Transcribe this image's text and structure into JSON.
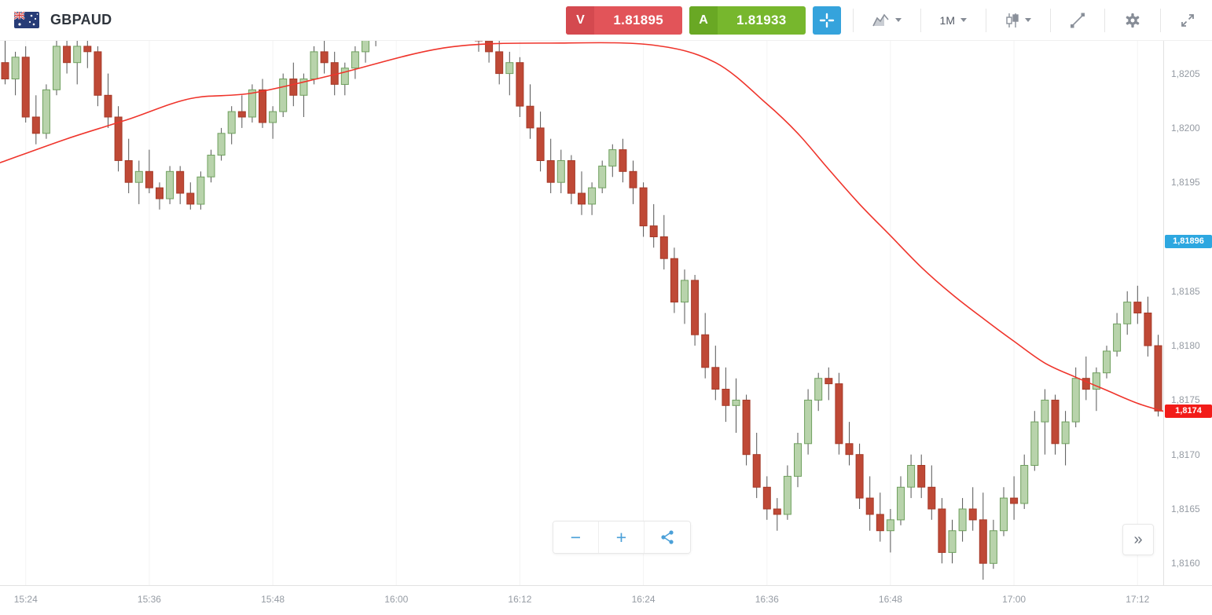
{
  "header": {
    "symbol": "GBPAUD",
    "flag_icon": "gbpaud-flag-icon",
    "sell": {
      "label": "V",
      "price": "1.81895",
      "bg": "#e25459",
      "label_bg": "#d4494f"
    },
    "buy": {
      "label": "A",
      "price": "1.81933",
      "bg": "#77b72d",
      "label_bg": "#69a824"
    },
    "crosshair": {
      "icon": "crosshair-icon",
      "bg": "#35a3dc"
    },
    "chart_type_icon": "area-chart-icon",
    "timeframe": "1M",
    "candle_style_icon": "candlestick-icon",
    "drawing_icon": "trendline-icon",
    "settings_icon": "gear-icon",
    "fullscreen_icon": "fullscreen-icon",
    "dropdown_icon": "chevron-down-icon"
  },
  "controls": {
    "zoom_out": "−",
    "zoom_in": "+",
    "share_icon": "share-icon",
    "jump_to_latest": "»"
  },
  "price_axis": {
    "labels": [
      {
        "text": "1,8205",
        "price": 1.8205
      },
      {
        "text": "1,8200",
        "price": 1.82
      },
      {
        "text": "1,8195",
        "price": 1.8195
      },
      {
        "text": "1,8185",
        "price": 1.8185
      },
      {
        "text": "1,8180",
        "price": 1.818
      },
      {
        "text": "1,8175",
        "price": 1.8175
      },
      {
        "text": "1,8170",
        "price": 1.817
      },
      {
        "text": "1,8165",
        "price": 1.8165
      },
      {
        "text": "1,8160",
        "price": 1.816
      }
    ],
    "bid_tag": {
      "text": "1,81896",
      "price": 1.81896,
      "color": "#2da7e0"
    },
    "last_tag": {
      "text": "1,8174",
      "price": 1.8174,
      "color": "#f21c19"
    }
  },
  "time_axis": {
    "labels": [
      {
        "text": "15:24",
        "index": 2
      },
      {
        "text": "15:36",
        "index": 14
      },
      {
        "text": "15:48",
        "index": 26
      },
      {
        "text": "16:00",
        "index": 38
      },
      {
        "text": "16:12",
        "index": 50
      },
      {
        "text": "16:24",
        "index": 62
      },
      {
        "text": "16:36",
        "index": 74
      },
      {
        "text": "16:48",
        "index": 86
      },
      {
        "text": "17:00",
        "index": 98
      },
      {
        "text": "17:12",
        "index": 110
      }
    ]
  },
  "chart_data": {
    "type": "candlestick",
    "symbol": "GBPAUD",
    "interval": "1M",
    "start_time": "15:22",
    "minutes_per_candle": 1,
    "ylim": [
      1.8158,
      1.8208
    ],
    "y_tick_step": 0.0005,
    "grid": "vertical-faint",
    "grid_color": "#f4f4f4",
    "up_color": "#b8d3ab",
    "up_border": "#6fa05e",
    "down_color": "#bf4936",
    "down_border": "#a53a28",
    "wick_color": "#555555",
    "ma": {
      "name": "moving-average",
      "color": "#ef342b",
      "points": [
        [
          -0.5,
          1.81968
        ],
        [
          6,
          1.8199
        ],
        [
          12,
          1.82008
        ],
        [
          18,
          1.82027
        ],
        [
          24,
          1.82032
        ],
        [
          32,
          1.82049
        ],
        [
          43,
          1.82074
        ],
        [
          54,
          1.82078
        ],
        [
          63,
          1.82076
        ],
        [
          69,
          1.8206
        ],
        [
          74,
          1.82022
        ],
        [
          77,
          1.81995
        ],
        [
          80,
          1.81962
        ],
        [
          83,
          1.8193
        ],
        [
          86,
          1.81901
        ],
        [
          89,
          1.81872
        ],
        [
          92,
          1.81847
        ],
        [
          95,
          1.81825
        ],
        [
          98,
          1.81804
        ],
        [
          101,
          1.81784
        ],
        [
          104,
          1.81771
        ],
        [
          107,
          1.81759
        ],
        [
          110,
          1.81747
        ],
        [
          112.8,
          1.81739
        ]
      ]
    },
    "ohlc": [
      [
        1.8206,
        1.8208,
        1.8204,
        1.82045
      ],
      [
        1.82045,
        1.8207,
        1.8203,
        1.82065
      ],
      [
        1.82065,
        1.82075,
        1.82005,
        1.8201
      ],
      [
        1.8201,
        1.8203,
        1.81985,
        1.81995
      ],
      [
        1.81995,
        1.8204,
        1.8199,
        1.82035
      ],
      [
        1.82035,
        1.8208,
        1.8203,
        1.82075
      ],
      [
        1.82075,
        1.82085,
        1.8205,
        1.8206
      ],
      [
        1.8206,
        1.8208,
        1.8204,
        1.82075
      ],
      [
        1.82075,
        1.82085,
        1.82055,
        1.8207
      ],
      [
        1.8207,
        1.82075,
        1.8202,
        1.8203
      ],
      [
        1.8203,
        1.8205,
        1.82,
        1.8201
      ],
      [
        1.8201,
        1.8202,
        1.8196,
        1.8197
      ],
      [
        1.8197,
        1.8199,
        1.8194,
        1.8195
      ],
      [
        1.8195,
        1.8197,
        1.8193,
        1.8196
      ],
      [
        1.8196,
        1.8198,
        1.8194,
        1.81945
      ],
      [
        1.81945,
        1.8195,
        1.81925,
        1.81935
      ],
      [
        1.81935,
        1.81965,
        1.8193,
        1.8196
      ],
      [
        1.8196,
        1.81965,
        1.8193,
        1.8194
      ],
      [
        1.8194,
        1.8195,
        1.81925,
        1.8193
      ],
      [
        1.8193,
        1.8196,
        1.81925,
        1.81955
      ],
      [
        1.81955,
        1.8198,
        1.8195,
        1.81975
      ],
      [
        1.81975,
        1.82,
        1.8197,
        1.81995
      ],
      [
        1.81995,
        1.8202,
        1.81985,
        1.82015
      ],
      [
        1.82015,
        1.8203,
        1.82,
        1.8201
      ],
      [
        1.8201,
        1.8204,
        1.82005,
        1.82035
      ],
      [
        1.82035,
        1.82045,
        1.82,
        1.82005
      ],
      [
        1.82005,
        1.8202,
        1.8199,
        1.82015
      ],
      [
        1.82015,
        1.8205,
        1.8201,
        1.82045
      ],
      [
        1.82045,
        1.8206,
        1.8202,
        1.8203
      ],
      [
        1.8203,
        1.8205,
        1.8201,
        1.82045
      ],
      [
        1.82045,
        1.82075,
        1.8204,
        1.8207
      ],
      [
        1.8207,
        1.8208,
        1.8205,
        1.8206
      ],
      [
        1.8206,
        1.8207,
        1.8203,
        1.8204
      ],
      [
        1.8204,
        1.8206,
        1.8203,
        1.82055
      ],
      [
        1.82055,
        1.82075,
        1.82045,
        1.8207
      ],
      [
        1.8207,
        1.8209,
        1.8206,
        1.82085
      ],
      [
        1.82085,
        1.821,
        1.82075,
        1.82095
      ],
      [
        1.82095,
        1.8211,
        1.82085,
        1.82105
      ],
      [
        1.82105,
        1.8212,
        1.82095,
        1.8211
      ],
      [
        1.8211,
        1.82125,
        1.821,
        1.8212
      ],
      [
        1.8212,
        1.8213,
        1.82105,
        1.82115
      ],
      [
        1.82115,
        1.82125,
        1.821,
        1.8211
      ],
      [
        1.8211,
        1.8212,
        1.82095,
        1.82105
      ],
      [
        1.82105,
        1.82115,
        1.8209,
        1.821
      ],
      [
        1.821,
        1.8211,
        1.82085,
        1.82095
      ],
      [
        1.82095,
        1.82105,
        1.8208,
        1.8209
      ],
      [
        1.8209,
        1.821,
        1.8207,
        1.8208
      ],
      [
        1.8208,
        1.8209,
        1.8206,
        1.8207
      ],
      [
        1.8207,
        1.8208,
        1.8204,
        1.8205
      ],
      [
        1.8205,
        1.8207,
        1.8203,
        1.8206
      ],
      [
        1.8206,
        1.82065,
        1.8201,
        1.8202
      ],
      [
        1.8202,
        1.8204,
        1.8199,
        1.82
      ],
      [
        1.82,
        1.82015,
        1.8196,
        1.8197
      ],
      [
        1.8197,
        1.8199,
        1.8194,
        1.8195
      ],
      [
        1.8195,
        1.8198,
        1.8194,
        1.8197
      ],
      [
        1.8197,
        1.81975,
        1.8193,
        1.8194
      ],
      [
        1.8194,
        1.8196,
        1.8192,
        1.8193
      ],
      [
        1.8193,
        1.8195,
        1.8192,
        1.81945
      ],
      [
        1.81945,
        1.8197,
        1.8194,
        1.81965
      ],
      [
        1.81965,
        1.81985,
        1.81955,
        1.8198
      ],
      [
        1.8198,
        1.8199,
        1.8195,
        1.8196
      ],
      [
        1.8196,
        1.8197,
        1.8193,
        1.81945
      ],
      [
        1.81945,
        1.8195,
        1.819,
        1.8191
      ],
      [
        1.8191,
        1.8193,
        1.8189,
        1.819
      ],
      [
        1.819,
        1.8192,
        1.8187,
        1.8188
      ],
      [
        1.8188,
        1.8189,
        1.8183,
        1.8184
      ],
      [
        1.8184,
        1.8187,
        1.8182,
        1.8186
      ],
      [
        1.8186,
        1.81865,
        1.818,
        1.8181
      ],
      [
        1.8181,
        1.8183,
        1.8177,
        1.8178
      ],
      [
        1.8178,
        1.818,
        1.8175,
        1.8176
      ],
      [
        1.8176,
        1.8178,
        1.8173,
        1.81745
      ],
      [
        1.81745,
        1.8177,
        1.8172,
        1.8175
      ],
      [
        1.8175,
        1.81755,
        1.8169,
        1.817
      ],
      [
        1.817,
        1.8172,
        1.8166,
        1.8167
      ],
      [
        1.8167,
        1.8168,
        1.8164,
        1.8165
      ],
      [
        1.8165,
        1.8166,
        1.8163,
        1.81645
      ],
      [
        1.81645,
        1.8169,
        1.8164,
        1.8168
      ],
      [
        1.8168,
        1.8172,
        1.8167,
        1.8171
      ],
      [
        1.8171,
        1.8176,
        1.817,
        1.8175
      ],
      [
        1.8175,
        1.81775,
        1.8174,
        1.8177
      ],
      [
        1.8177,
        1.8178,
        1.8175,
        1.81765
      ],
      [
        1.81765,
        1.81775,
        1.817,
        1.8171
      ],
      [
        1.8171,
        1.8173,
        1.8169,
        1.817
      ],
      [
        1.817,
        1.8171,
        1.8165,
        1.8166
      ],
      [
        1.8166,
        1.8168,
        1.8163,
        1.81645
      ],
      [
        1.81645,
        1.81665,
        1.8162,
        1.8163
      ],
      [
        1.8163,
        1.8165,
        1.8161,
        1.8164
      ],
      [
        1.8164,
        1.8168,
        1.81635,
        1.8167
      ],
      [
        1.8167,
        1.817,
        1.8166,
        1.8169
      ],
      [
        1.8169,
        1.817,
        1.8166,
        1.8167
      ],
      [
        1.8167,
        1.8169,
        1.8164,
        1.8165
      ],
      [
        1.8165,
        1.8166,
        1.816,
        1.8161
      ],
      [
        1.8161,
        1.8164,
        1.816,
        1.8163
      ],
      [
        1.8163,
        1.8166,
        1.8162,
        1.8165
      ],
      [
        1.8165,
        1.8167,
        1.8163,
        1.8164
      ],
      [
        1.8164,
        1.81665,
        1.81585,
        1.816
      ],
      [
        1.816,
        1.8164,
        1.81595,
        1.8163
      ],
      [
        1.8163,
        1.8167,
        1.81625,
        1.8166
      ],
      [
        1.8166,
        1.8168,
        1.8164,
        1.81655
      ],
      [
        1.81655,
        1.817,
        1.8165,
        1.8169
      ],
      [
        1.8169,
        1.8174,
        1.81685,
        1.8173
      ],
      [
        1.8173,
        1.8176,
        1.817,
        1.8175
      ],
      [
        1.8175,
        1.81755,
        1.817,
        1.8171
      ],
      [
        1.8171,
        1.8174,
        1.8169,
        1.8173
      ],
      [
        1.8173,
        1.8178,
        1.81725,
        1.8177
      ],
      [
        1.8177,
        1.8179,
        1.8175,
        1.8176
      ],
      [
        1.8176,
        1.8178,
        1.8174,
        1.81775
      ],
      [
        1.81775,
        1.818,
        1.8177,
        1.81795
      ],
      [
        1.81795,
        1.8183,
        1.8179,
        1.8182
      ],
      [
        1.8182,
        1.8185,
        1.8181,
        1.8184
      ],
      [
        1.8184,
        1.81855,
        1.8182,
        1.8183
      ],
      [
        1.8183,
        1.81845,
        1.8179,
        1.818
      ],
      [
        1.818,
        1.8181,
        1.81735,
        1.8174
      ]
    ]
  }
}
